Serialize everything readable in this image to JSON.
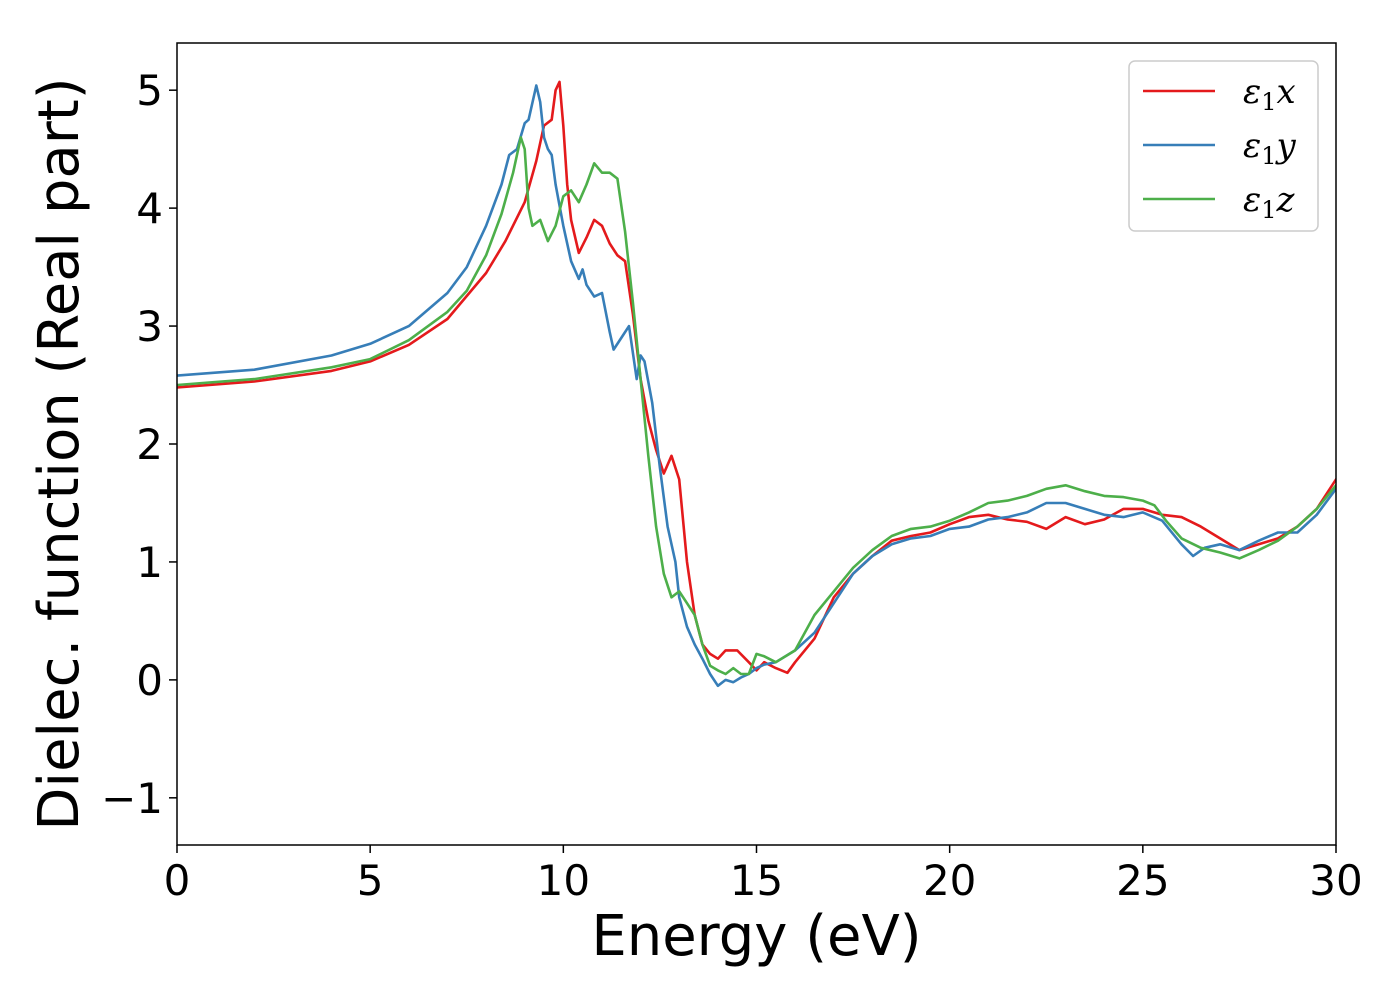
{
  "chart_data": {
    "type": "line",
    "title": "",
    "xlabel": "Energy (eV)",
    "ylabel": "Dielec. function (Real part)",
    "xlim": [
      0,
      30
    ],
    "ylim": [
      -1.4,
      5.4
    ],
    "xticks": [
      0,
      5,
      10,
      15,
      20,
      25,
      30
    ],
    "xtick_labels": [
      "0",
      "5",
      "10",
      "15",
      "20",
      "25",
      "30"
    ],
    "yticks": [
      -1,
      0,
      1,
      2,
      3,
      4,
      5
    ],
    "ytick_labels": [
      "−1",
      "0",
      "1",
      "2",
      "3",
      "4",
      "5"
    ],
    "grid": false,
    "legend_position": "top-right",
    "series": [
      {
        "name": "ε₁x",
        "legend_base": "ε",
        "legend_sub": "1",
        "legend_var": "x",
        "color": "#e41a1c",
        "points": [
          [
            0,
            2.48
          ],
          [
            2,
            2.53
          ],
          [
            4,
            2.62
          ],
          [
            5,
            2.7
          ],
          [
            6,
            2.84
          ],
          [
            7,
            3.06
          ],
          [
            8,
            3.45
          ],
          [
            8.5,
            3.72
          ],
          [
            9,
            4.05
          ],
          [
            9.3,
            4.4
          ],
          [
            9.5,
            4.7
          ],
          [
            9.7,
            4.75
          ],
          [
            9.8,
            5.0
          ],
          [
            9.9,
            5.07
          ],
          [
            10.0,
            4.7
          ],
          [
            10.1,
            4.2
          ],
          [
            10.2,
            3.9
          ],
          [
            10.4,
            3.62
          ],
          [
            10.6,
            3.75
          ],
          [
            10.8,
            3.9
          ],
          [
            11.0,
            3.85
          ],
          [
            11.2,
            3.7
          ],
          [
            11.4,
            3.6
          ],
          [
            11.6,
            3.55
          ],
          [
            11.8,
            3.1
          ],
          [
            12.0,
            2.55
          ],
          [
            12.2,
            2.2
          ],
          [
            12.4,
            1.95
          ],
          [
            12.6,
            1.75
          ],
          [
            12.8,
            1.9
          ],
          [
            13.0,
            1.7
          ],
          [
            13.2,
            1.0
          ],
          [
            13.4,
            0.55
          ],
          [
            13.6,
            0.3
          ],
          [
            13.8,
            0.22
          ],
          [
            14.0,
            0.18
          ],
          [
            14.2,
            0.25
          ],
          [
            14.5,
            0.25
          ],
          [
            14.8,
            0.15
          ],
          [
            15.0,
            0.08
          ],
          [
            15.2,
            0.15
          ],
          [
            15.5,
            0.1
          ],
          [
            15.8,
            0.06
          ],
          [
            16.0,
            0.15
          ],
          [
            16.5,
            0.35
          ],
          [
            17.0,
            0.7
          ],
          [
            17.5,
            0.9
          ],
          [
            18.0,
            1.05
          ],
          [
            18.5,
            1.18
          ],
          [
            19.0,
            1.22
          ],
          [
            19.5,
            1.25
          ],
          [
            20.0,
            1.32
          ],
          [
            20.5,
            1.38
          ],
          [
            21.0,
            1.4
          ],
          [
            21.5,
            1.36
          ],
          [
            22.0,
            1.34
          ],
          [
            22.5,
            1.28
          ],
          [
            23.0,
            1.38
          ],
          [
            23.5,
            1.32
          ],
          [
            24.0,
            1.36
          ],
          [
            24.5,
            1.45
          ],
          [
            25.0,
            1.45
          ],
          [
            25.5,
            1.4
          ],
          [
            26.0,
            1.38
          ],
          [
            26.5,
            1.3
          ],
          [
            27.0,
            1.2
          ],
          [
            27.5,
            1.1
          ],
          [
            28.0,
            1.15
          ],
          [
            28.5,
            1.2
          ],
          [
            29.0,
            1.3
          ],
          [
            29.5,
            1.45
          ],
          [
            30.0,
            1.7
          ]
        ]
      },
      {
        "name": "ε₁y",
        "legend_base": "ε",
        "legend_sub": "1",
        "legend_var": "y",
        "color": "#377eb8",
        "points": [
          [
            0,
            2.58
          ],
          [
            2,
            2.63
          ],
          [
            4,
            2.75
          ],
          [
            5,
            2.85
          ],
          [
            6,
            3.0
          ],
          [
            7,
            3.28
          ],
          [
            7.5,
            3.5
          ],
          [
            8,
            3.85
          ],
          [
            8.4,
            4.2
          ],
          [
            8.6,
            4.45
          ],
          [
            8.8,
            4.5
          ],
          [
            9.0,
            4.72
          ],
          [
            9.1,
            4.75
          ],
          [
            9.3,
            5.04
          ],
          [
            9.4,
            4.9
          ],
          [
            9.5,
            4.6
          ],
          [
            9.6,
            4.5
          ],
          [
            9.7,
            4.45
          ],
          [
            9.8,
            4.2
          ],
          [
            10.0,
            3.85
          ],
          [
            10.2,
            3.55
          ],
          [
            10.4,
            3.4
          ],
          [
            10.5,
            3.48
          ],
          [
            10.6,
            3.35
          ],
          [
            10.8,
            3.25
          ],
          [
            11.0,
            3.28
          ],
          [
            11.2,
            2.95
          ],
          [
            11.3,
            2.8
          ],
          [
            11.5,
            2.9
          ],
          [
            11.7,
            3.0
          ],
          [
            11.9,
            2.55
          ],
          [
            12.0,
            2.75
          ],
          [
            12.1,
            2.7
          ],
          [
            12.3,
            2.35
          ],
          [
            12.5,
            1.8
          ],
          [
            12.7,
            1.3
          ],
          [
            12.9,
            1.0
          ],
          [
            13.0,
            0.7
          ],
          [
            13.2,
            0.45
          ],
          [
            13.4,
            0.3
          ],
          [
            13.6,
            0.18
          ],
          [
            13.8,
            0.05
          ],
          [
            14.0,
            -0.05
          ],
          [
            14.2,
            0.0
          ],
          [
            14.4,
            -0.02
          ],
          [
            14.6,
            0.02
          ],
          [
            14.8,
            0.05
          ],
          [
            15.0,
            0.1
          ],
          [
            15.2,
            0.13
          ],
          [
            15.5,
            0.15
          ],
          [
            16.0,
            0.25
          ],
          [
            16.5,
            0.4
          ],
          [
            17.0,
            0.65
          ],
          [
            17.5,
            0.9
          ],
          [
            18.0,
            1.05
          ],
          [
            18.5,
            1.15
          ],
          [
            19.0,
            1.2
          ],
          [
            19.5,
            1.22
          ],
          [
            20.0,
            1.28
          ],
          [
            20.5,
            1.3
          ],
          [
            21.0,
            1.36
          ],
          [
            21.5,
            1.38
          ],
          [
            22.0,
            1.42
          ],
          [
            22.5,
            1.5
          ],
          [
            23.0,
            1.5
          ],
          [
            23.5,
            1.45
          ],
          [
            24.0,
            1.4
          ],
          [
            24.5,
            1.38
          ],
          [
            25.0,
            1.42
          ],
          [
            25.5,
            1.35
          ],
          [
            26.0,
            1.15
          ],
          [
            26.3,
            1.05
          ],
          [
            26.6,
            1.12
          ],
          [
            27.0,
            1.15
          ],
          [
            27.5,
            1.1
          ],
          [
            28.0,
            1.18
          ],
          [
            28.5,
            1.25
          ],
          [
            29.0,
            1.25
          ],
          [
            29.5,
            1.4
          ],
          [
            30.0,
            1.62
          ]
        ]
      },
      {
        "name": "ε₁z",
        "legend_base": "ε",
        "legend_sub": "1",
        "legend_var": "z",
        "color": "#4daf4a",
        "points": [
          [
            0,
            2.5
          ],
          [
            2,
            2.55
          ],
          [
            4,
            2.65
          ],
          [
            5,
            2.72
          ],
          [
            6,
            2.88
          ],
          [
            7,
            3.12
          ],
          [
            7.5,
            3.3
          ],
          [
            8,
            3.6
          ],
          [
            8.4,
            3.95
          ],
          [
            8.7,
            4.3
          ],
          [
            8.9,
            4.6
          ],
          [
            9.0,
            4.5
          ],
          [
            9.1,
            4.0
          ],
          [
            9.2,
            3.85
          ],
          [
            9.4,
            3.9
          ],
          [
            9.6,
            3.72
          ],
          [
            9.8,
            3.85
          ],
          [
            10.0,
            4.1
          ],
          [
            10.2,
            4.15
          ],
          [
            10.4,
            4.05
          ],
          [
            10.6,
            4.2
          ],
          [
            10.8,
            4.38
          ],
          [
            11.0,
            4.3
          ],
          [
            11.2,
            4.3
          ],
          [
            11.4,
            4.25
          ],
          [
            11.6,
            3.8
          ],
          [
            11.8,
            3.2
          ],
          [
            12.0,
            2.55
          ],
          [
            12.2,
            1.9
          ],
          [
            12.4,
            1.3
          ],
          [
            12.6,
            0.9
          ],
          [
            12.8,
            0.7
          ],
          [
            13.0,
            0.75
          ],
          [
            13.2,
            0.65
          ],
          [
            13.4,
            0.55
          ],
          [
            13.6,
            0.3
          ],
          [
            13.8,
            0.12
          ],
          [
            14.0,
            0.08
          ],
          [
            14.2,
            0.05
          ],
          [
            14.4,
            0.1
          ],
          [
            14.6,
            0.05
          ],
          [
            14.8,
            0.05
          ],
          [
            15.0,
            0.22
          ],
          [
            15.2,
            0.2
          ],
          [
            15.5,
            0.15
          ],
          [
            16.0,
            0.25
          ],
          [
            16.5,
            0.55
          ],
          [
            17.0,
            0.75
          ],
          [
            17.5,
            0.95
          ],
          [
            18.0,
            1.1
          ],
          [
            18.5,
            1.22
          ],
          [
            19.0,
            1.28
          ],
          [
            19.5,
            1.3
          ],
          [
            20.0,
            1.35
          ],
          [
            20.5,
            1.42
          ],
          [
            21.0,
            1.5
          ],
          [
            21.5,
            1.52
          ],
          [
            22.0,
            1.56
          ],
          [
            22.5,
            1.62
          ],
          [
            23.0,
            1.65
          ],
          [
            23.5,
            1.6
          ],
          [
            24.0,
            1.56
          ],
          [
            24.5,
            1.55
          ],
          [
            25.0,
            1.52
          ],
          [
            25.3,
            1.48
          ],
          [
            25.6,
            1.35
          ],
          [
            26.0,
            1.2
          ],
          [
            26.5,
            1.12
          ],
          [
            27.0,
            1.08
          ],
          [
            27.5,
            1.03
          ],
          [
            28.0,
            1.1
          ],
          [
            28.5,
            1.18
          ],
          [
            29.0,
            1.3
          ],
          [
            29.5,
            1.45
          ],
          [
            30.0,
            1.65
          ]
        ]
      }
    ]
  }
}
